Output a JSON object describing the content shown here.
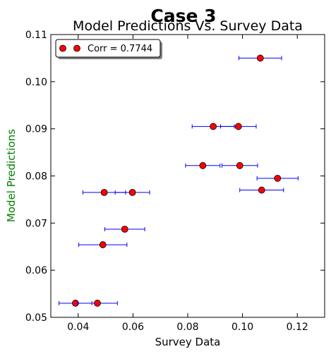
{
  "chart_data": {
    "type": "scatter",
    "suptitle": "Case 3",
    "title": "Model Predictions Vs. Survey Data",
    "xlabel": "Survey Data",
    "ylabel": "Model Predictions",
    "xlim": [
      0.03,
      0.13
    ],
    "ylim": [
      0.05,
      0.11
    ],
    "x_ticks": [
      "0.04",
      "0.06",
      "0.08",
      "0.10",
      "0.12"
    ],
    "y_ticks": [
      "0.05",
      "0.06",
      "0.07",
      "0.08",
      "0.09",
      "0.10",
      "0.11"
    ],
    "grid": false,
    "legend": {
      "label": "Corr = 0.7744",
      "placement": "top-left"
    },
    "colors": {
      "marker": "#ff0000",
      "errorbar": "#0000ff",
      "ylabel": "#008000"
    },
    "points": [
      {
        "x": 0.1065,
        "y": 0.105,
        "xerr": 0.0078
      },
      {
        "x": 0.0893,
        "y": 0.0905,
        "xerr": 0.0077
      },
      {
        "x": 0.0985,
        "y": 0.0905,
        "xerr": 0.0065
      },
      {
        "x": 0.0855,
        "y": 0.0822,
        "xerr": 0.0063
      },
      {
        "x": 0.099,
        "y": 0.0822,
        "xerr": 0.0065
      },
      {
        "x": 0.1128,
        "y": 0.0795,
        "xerr": 0.0075
      },
      {
        "x": 0.107,
        "y": 0.077,
        "xerr": 0.008
      },
      {
        "x": 0.0495,
        "y": 0.0765,
        "xerr": 0.0078
      },
      {
        "x": 0.0598,
        "y": 0.0765,
        "xerr": 0.0063
      },
      {
        "x": 0.057,
        "y": 0.0687,
        "xerr": 0.0073
      },
      {
        "x": 0.049,
        "y": 0.0654,
        "xerr": 0.0088
      },
      {
        "x": 0.039,
        "y": 0.053,
        "xerr": 0.006
      },
      {
        "x": 0.047,
        "y": 0.053,
        "xerr": 0.0073
      }
    ]
  }
}
